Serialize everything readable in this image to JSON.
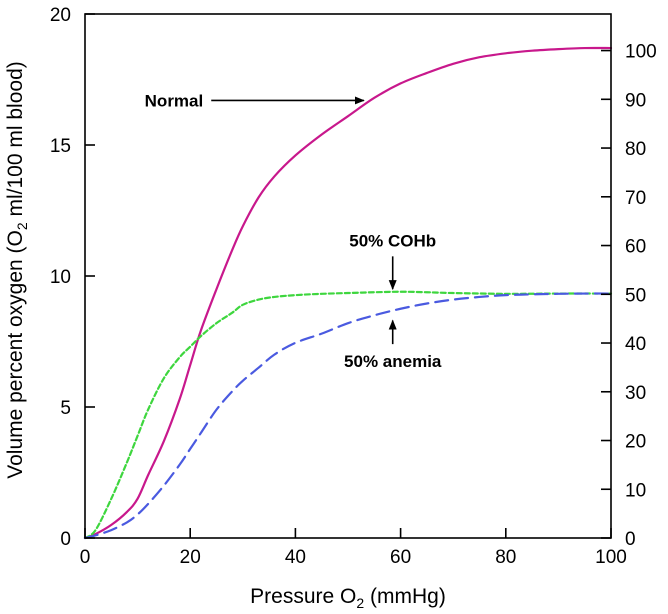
{
  "chart_data": {
    "type": "line",
    "title": "",
    "xlabel": {
      "main": "Pressure O",
      "sub": "2",
      "unit": " (mmHg)"
    },
    "ylabel_left": {
      "pre": "Volume percent oxygen (O",
      "sub": "2",
      "post": " ml/100 ml blood)"
    },
    "xlim": [
      0,
      100
    ],
    "ylim_left": [
      0,
      20
    ],
    "ylim_right": [
      0,
      107.5
    ],
    "x_ticks": [
      "0",
      "20",
      "40",
      "60",
      "80",
      "100"
    ],
    "y_left_ticks": [
      "0",
      "5",
      "10",
      "15",
      "20"
    ],
    "y_right_ticks": [
      "0",
      "10",
      "20",
      "30",
      "40",
      "50",
      "60",
      "70",
      "80",
      "90",
      "100"
    ],
    "grid": false,
    "legend": "none",
    "series": [
      {
        "name": "Normal",
        "color": "#c8188c",
        "style": "solid",
        "x": [
          0,
          2,
          5,
          8,
          10,
          12,
          15,
          18,
          20,
          22,
          25,
          28,
          30,
          33,
          36,
          40,
          45,
          50,
          55,
          60,
          65,
          70,
          75,
          80,
          85,
          90,
          95,
          100
        ],
        "y": [
          0,
          0.15,
          0.5,
          1.0,
          1.5,
          2.4,
          3.7,
          5.3,
          6.6,
          7.9,
          9.5,
          11.0,
          11.9,
          13.0,
          13.8,
          14.6,
          15.4,
          16.1,
          16.8,
          17.35,
          17.75,
          18.1,
          18.35,
          18.5,
          18.6,
          18.66,
          18.7,
          18.7
        ]
      },
      {
        "name": "50% COHb",
        "color": "#3ed63e",
        "style": "short-dash",
        "x": [
          0,
          2,
          5,
          8,
          10,
          12,
          15,
          18,
          20,
          22,
          25,
          28,
          30,
          33,
          36,
          40,
          45,
          50,
          55,
          60,
          65,
          70,
          80,
          90,
          100
        ],
        "y": [
          0,
          0.3,
          1.5,
          2.9,
          3.9,
          4.9,
          6.1,
          6.9,
          7.3,
          7.7,
          8.2,
          8.6,
          8.9,
          9.1,
          9.2,
          9.27,
          9.32,
          9.35,
          9.38,
          9.4,
          9.38,
          9.35,
          9.32,
          9.33,
          9.33
        ]
      },
      {
        "name": "50% anemia",
        "color": "#4a5ae0",
        "style": "long-dash",
        "x": [
          0,
          2,
          5,
          8,
          10,
          12,
          15,
          18,
          20,
          22,
          25,
          28,
          30,
          33,
          36,
          40,
          45,
          50,
          55,
          60,
          65,
          70,
          75,
          80,
          85,
          90,
          95,
          100
        ],
        "y": [
          0,
          0.1,
          0.3,
          0.6,
          0.9,
          1.3,
          2.0,
          2.8,
          3.4,
          4.0,
          4.9,
          5.6,
          6.0,
          6.5,
          7.0,
          7.45,
          7.8,
          8.2,
          8.5,
          8.75,
          8.95,
          9.1,
          9.2,
          9.27,
          9.3,
          9.32,
          9.33,
          9.33
        ]
      }
    ],
    "annotations": [
      {
        "text": "Normal",
        "arrow_from": [
          24,
          16.7
        ],
        "arrow_to": [
          53,
          16.7
        ]
      },
      {
        "text": "50% COHb",
        "arrow_from": [
          58.5,
          10.75
        ],
        "arrow_to": [
          58.5,
          9.5
        ]
      },
      {
        "text": "50% anemia",
        "arrow_from": [
          58.5,
          7.4
        ],
        "arrow_to": [
          58.5,
          8.3
        ]
      }
    ]
  }
}
